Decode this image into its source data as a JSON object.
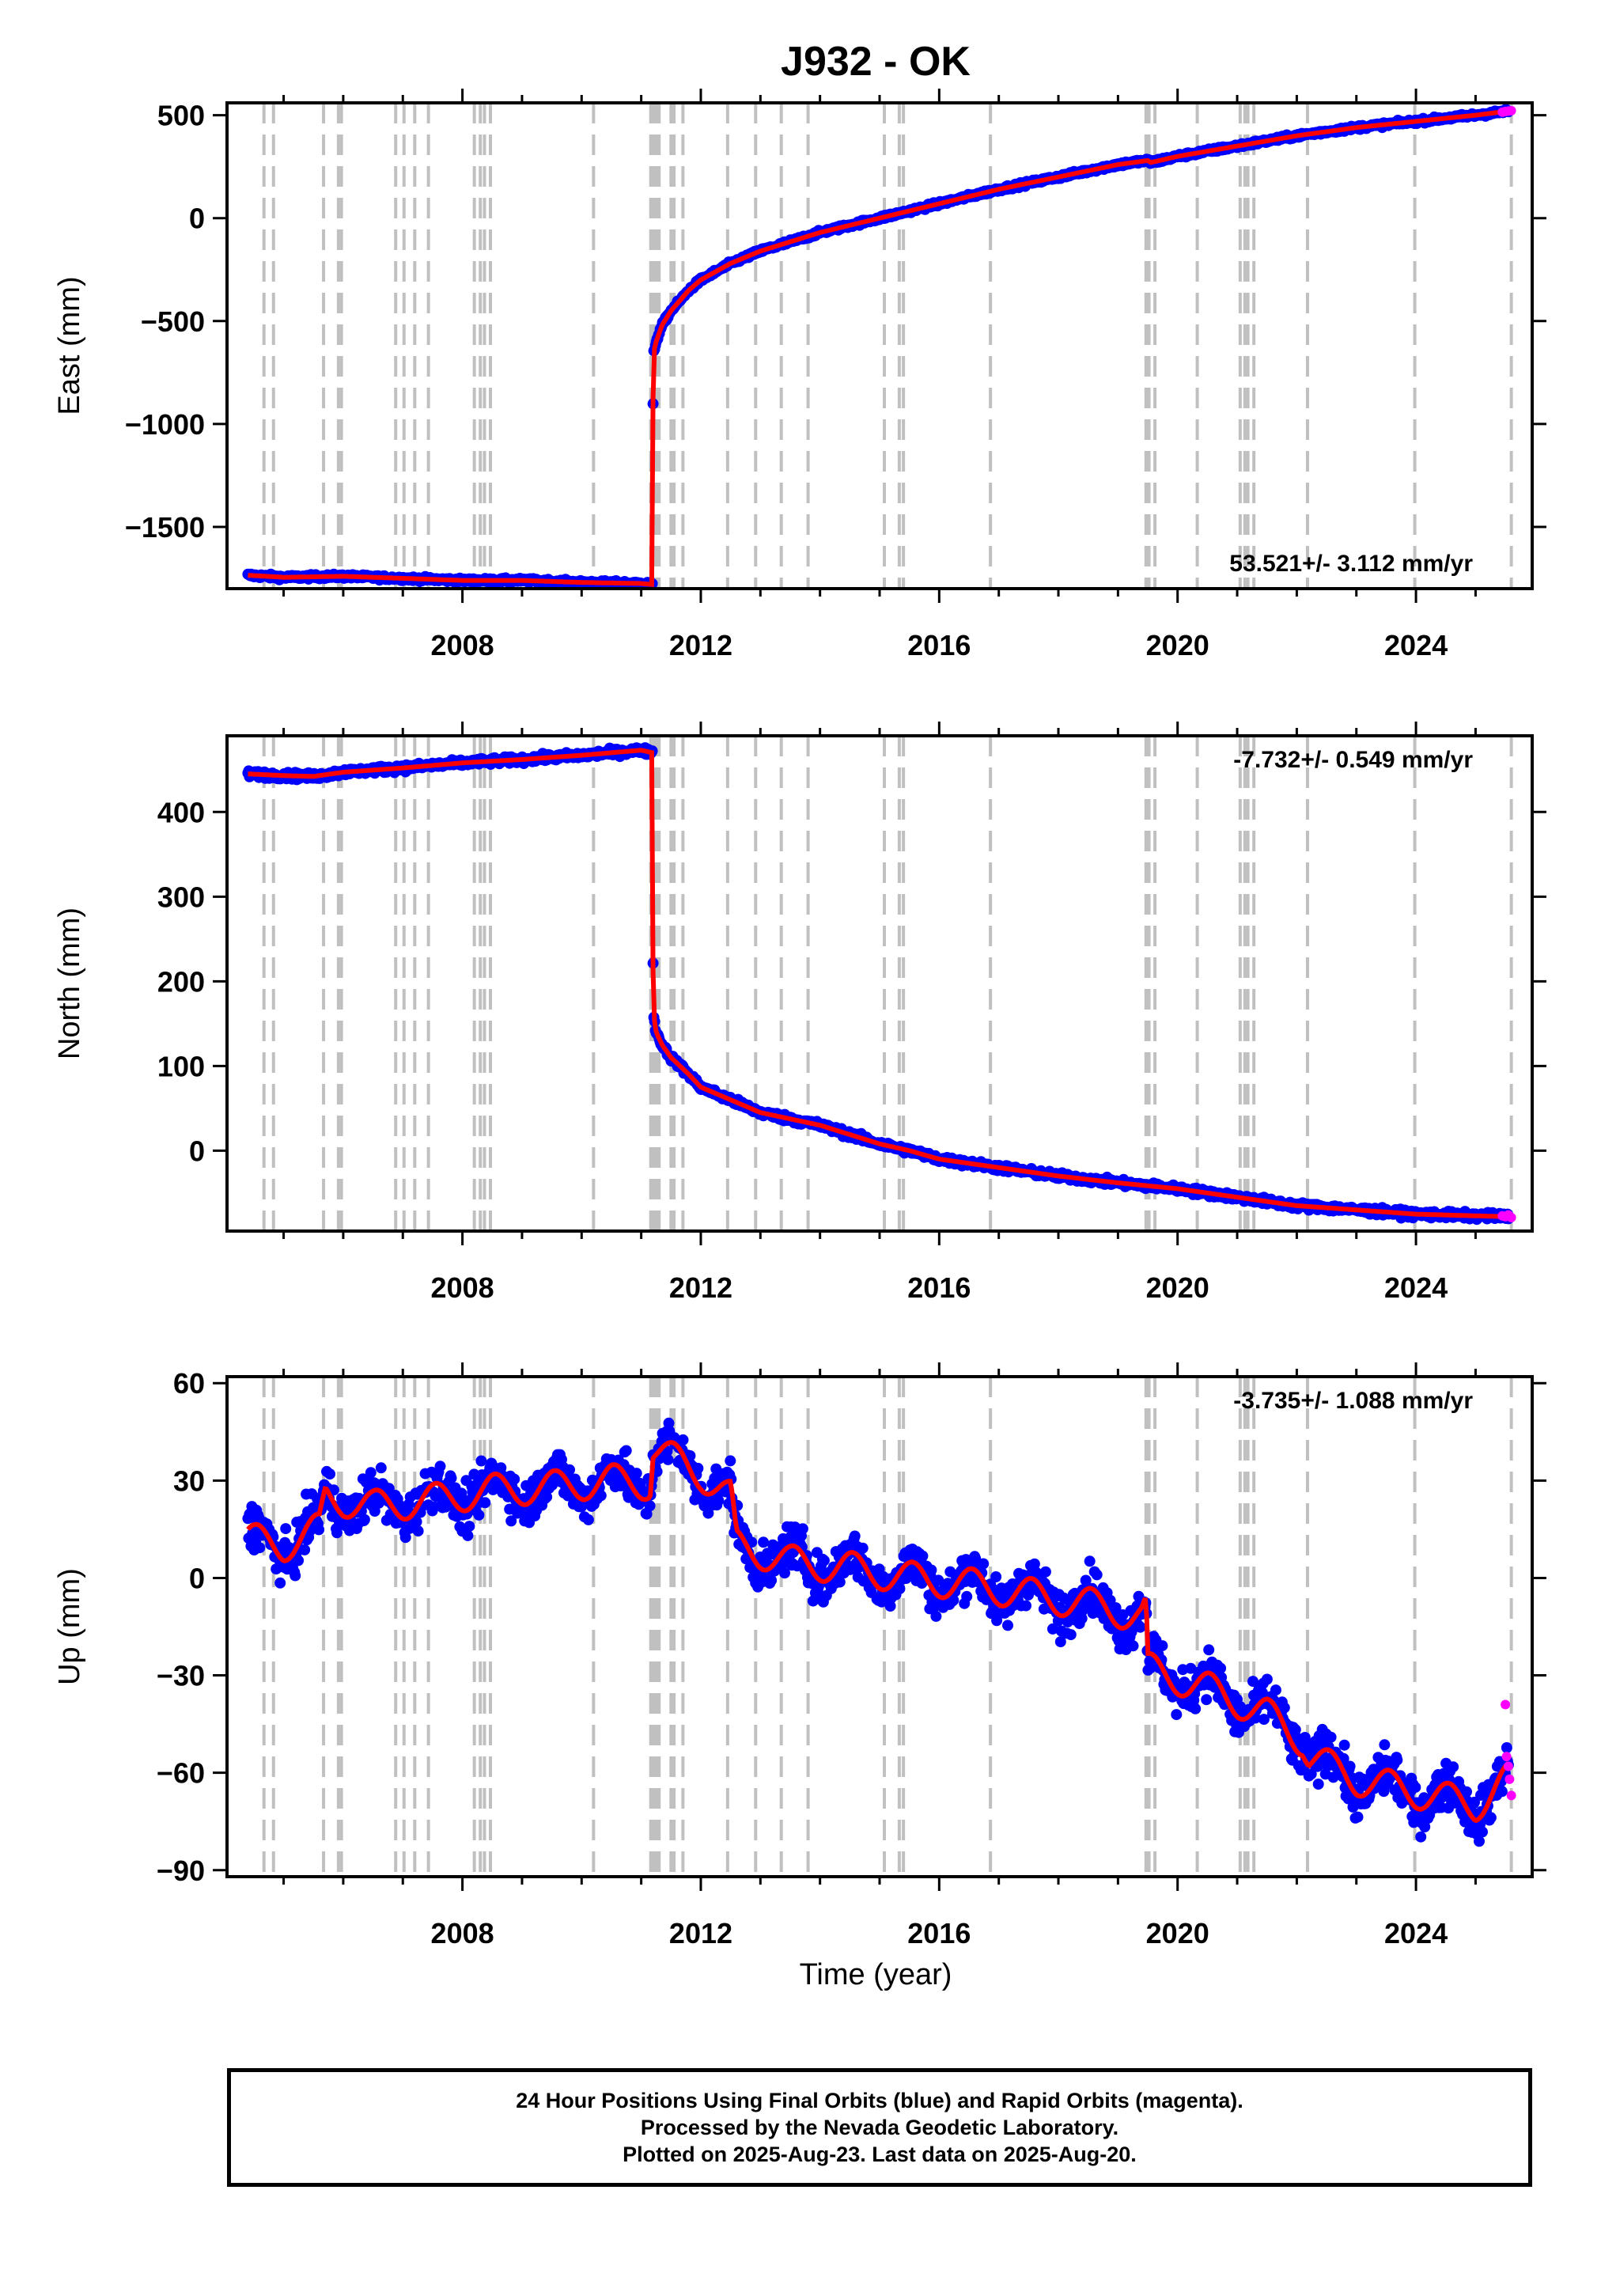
{
  "chart_data": {
    "type": "scatter",
    "title": "J932 - OK",
    "xlabel": "Time (year)",
    "x_ticks": [
      2008,
      2012,
      2016,
      2020,
      2024
    ],
    "xlim": [
      2004.05,
      2025.95
    ],
    "event_lines": [
      2004.67,
      2004.83,
      2005.67,
      2005.92,
      2005.97,
      2006.88,
      2007.02,
      2007.2,
      2007.43,
      2008.2,
      2008.3,
      2008.37,
      2008.47,
      2010.2,
      2011.16,
      2011.19,
      2011.22,
      2011.26,
      2011.3,
      2011.5,
      2011.55,
      2011.7,
      2012.45,
      2012.92,
      2013.35,
      2013.8,
      2015.08,
      2015.33,
      2015.4,
      2016.86,
      2019.47,
      2019.52,
      2019.62,
      2020.33,
      2021.05,
      2021.13,
      2021.18,
      2021.28,
      2022.18,
      2023.98,
      2025.6
    ],
    "panels": [
      {
        "key": "east",
        "ylabel": "East (mm)",
        "ylim": [
          -1800,
          560
        ],
        "y_ticks": [
          -1500,
          -1000,
          -500,
          0,
          500
        ],
        "y_tick_labels": [
          "−1500",
          "−1000",
          "−500",
          "0",
          "500"
        ],
        "rate_label": "53.521+/- 3.112 mm/yr",
        "rate_position": "bottom-right",
        "series": [
          {
            "name": "Final Orbits",
            "color": "#0000ff",
            "x": [
              2004.4,
              2005,
              2006,
              2007,
              2008,
              2009,
              2010,
              2011,
              2011.19,
              2011.2,
              2011.21,
              2011.25,
              2011.35,
              2011.5,
              2011.8,
              2012,
              2012.5,
              2013,
              2014,
              2015,
              2016,
              2017,
              2018,
              2019,
              2019.5,
              2019.55,
              2020,
              2021,
              2022,
              2023,
              2024,
              2025,
              2025.55
            ],
            "y": [
              -1735,
              -1745,
              -1740,
              -1750,
              -1760,
              -1760,
              -1770,
              -1775,
              -1780,
              -780,
              -650,
              -600,
              -520,
              -450,
              -350,
              -300,
              -220,
              -160,
              -70,
              0,
              70,
              140,
              200,
              260,
              280,
              270,
              300,
              350,
              400,
              440,
              470,
              500,
              520
            ],
            "jitter": 10
          },
          {
            "name": "Model",
            "color": "#ff0000",
            "x": [
              2004.4,
              2005,
              2006,
              2007,
              2008,
              2009,
              2010,
              2011,
              2011.19,
              2011.2,
              2011.21,
              2011.25,
              2011.35,
              2011.5,
              2011.8,
              2012,
              2012.5,
              2013,
              2014,
              2015,
              2016,
              2017,
              2018,
              2019,
              2019.5,
              2019.55,
              2020,
              2021,
              2022,
              2023,
              2024,
              2025,
              2025.55
            ],
            "y": [
              -1735,
              -1745,
              -1740,
              -1750,
              -1760,
              -1760,
              -1770,
              -1775,
              -1780,
              -780,
              -650,
              -600,
              -520,
              -450,
              -350,
              -300,
              -220,
              -160,
              -70,
              0,
              70,
              140,
              200,
              260,
              280,
              270,
              300,
              350,
              400,
              440,
              470,
              500,
              520
            ]
          },
          {
            "name": "Rapid Orbits",
            "color": "#ff00ff",
            "x": [
              2025.45,
              2025.5,
              2025.55,
              2025.6
            ],
            "y": [
              515,
              518,
              520,
              522
            ]
          }
        ]
      },
      {
        "key": "north",
        "ylabel": "North (mm)",
        "ylim": [
          -95,
          490
        ],
        "y_ticks": [
          0,
          100,
          200,
          300,
          400
        ],
        "y_tick_labels": [
          "0",
          "100",
          "200",
          "300",
          "400"
        ],
        "rate_label": "-7.732+/- 0.549 mm/yr",
        "rate_position": "top-right",
        "series": [
          {
            "name": "Final Orbits",
            "color": "#0000ff",
            "x": [
              2004.4,
              2005,
              2005.5,
              2006,
              2007,
              2008,
              2009,
              2010,
              2011,
              2011.19,
              2011.2,
              2011.21,
              2011.25,
              2011.35,
              2011.5,
              2011.8,
              2012,
              2012.5,
              2013,
              2014,
              2015,
              2015.5,
              2016,
              2017,
              2018,
              2019,
              2020,
              2021,
              2022,
              2023,
              2024,
              2025,
              2025.55
            ],
            "y": [
              445,
              443,
              442,
              447,
              452,
              458,
              462,
              467,
              473,
              470,
              185,
              160,
              140,
              125,
              110,
              90,
              75,
              60,
              45,
              30,
              8,
              0,
              -10,
              -20,
              -30,
              -38,
              -45,
              -55,
              -65,
              -70,
              -75,
              -77,
              -78
            ],
            "jitter": 4
          },
          {
            "name": "Model",
            "color": "#ff0000",
            "x": [
              2004.4,
              2005,
              2005.5,
              2006,
              2007,
              2008,
              2009,
              2010,
              2011,
              2011.19,
              2011.2,
              2011.21,
              2011.25,
              2011.35,
              2011.5,
              2011.8,
              2012,
              2012.5,
              2013,
              2014,
              2015,
              2015.5,
              2016,
              2017,
              2018,
              2019,
              2020,
              2021,
              2022,
              2023,
              2024,
              2025,
              2025.55
            ],
            "y": [
              445,
              443,
              442,
              447,
              452,
              458,
              462,
              467,
              473,
              470,
              185,
              160,
              140,
              125,
              110,
              90,
              75,
              60,
              45,
              30,
              8,
              0,
              -10,
              -20,
              -30,
              -38,
              -45,
              -55,
              -65,
              -70,
              -75,
              -77,
              -78
            ]
          },
          {
            "name": "Rapid Orbits",
            "color": "#ff00ff",
            "x": [
              2025.45,
              2025.5,
              2025.55,
              2025.6
            ],
            "y": [
              -77,
              -78,
              -76,
              -79
            ]
          }
        ]
      },
      {
        "key": "up",
        "ylabel": "Up (mm)",
        "ylim": [
          -92,
          62
        ],
        "y_ticks": [
          -90,
          -60,
          -30,
          0,
          30,
          60
        ],
        "y_tick_labels": [
          "−90",
          "−60",
          "−30",
          "0",
          "30",
          "60"
        ],
        "rate_label": "-3.735+/- 1.088 mm/yr",
        "rate_position": "top-right",
        "series": [
          {
            "name": "Final Orbits",
            "color": "#0000ff",
            "x": [
              2004.4,
              2005,
              2005.6,
              2005.7,
              2006.5,
              2007.5,
              2008.5,
              2009.5,
              2010.5,
              2011.15,
              2011.2,
              2012,
              2012.5,
              2012.6,
              2013.5,
              2014.5,
              2015.5,
              2016.5,
              2017.5,
              2018.5,
              2019.4,
              2019.47,
              2019.5,
              2020.5,
              2021.5,
              2022.1,
              2022.2,
              2023,
              2024,
              2025,
              2025.55
            ],
            "y": [
              12,
              10,
              15,
              25,
              22,
              24,
              27,
              28,
              30,
              29,
              40,
              32,
              25,
              10,
              5,
              3,
              0,
              -2,
              -5,
              -8,
              -12,
              -10,
              -28,
              -34,
              -42,
              -50,
              -55,
              -62,
              -66,
              -70,
              -62
            ],
            "jitter": 7
          },
          {
            "name": "Model",
            "color": "#ff0000",
            "x": [
              2004.4,
              2005,
              2005.6,
              2005.7,
              2006.5,
              2007.5,
              2008.5,
              2009.5,
              2010.5,
              2011.15,
              2011.2,
              2012,
              2012.5,
              2012.6,
              2013.5,
              2014.5,
              2015.5,
              2016.5,
              2017.5,
              2018.5,
              2019.4,
              2019.47,
              2019.5,
              2020.5,
              2021.5,
              2022.1,
              2022.2,
              2023,
              2024,
              2025,
              2025.55
            ],
            "y": [
              12,
              10,
              15,
              25,
              22,
              24,
              27,
              28,
              30,
              29,
              40,
              32,
              25,
              10,
              5,
              3,
              0,
              -2,
              -5,
              -8,
              -12,
              -10,
              -28,
              -34,
              -42,
              -50,
              -55,
              -62,
              -66,
              -70,
              -62
            ],
            "seasonal_amplitude": 5
          },
          {
            "name": "Rapid Orbits",
            "color": "#ff00ff",
            "x": [
              2025.5,
              2025.52,
              2025.55,
              2025.57,
              2025.6
            ],
            "y": [
              -39,
              -55,
              -58,
              -62,
              -67
            ]
          }
        ]
      }
    ]
  },
  "footer": {
    "line1": "24 Hour Positions Using Final Orbits (blue) and Rapid Orbits (magenta).",
    "line2": "Processed by the Nevada Geodetic Laboratory.",
    "line3": "Plotted on 2025-Aug-23. Last data on 2025-Aug-20."
  }
}
